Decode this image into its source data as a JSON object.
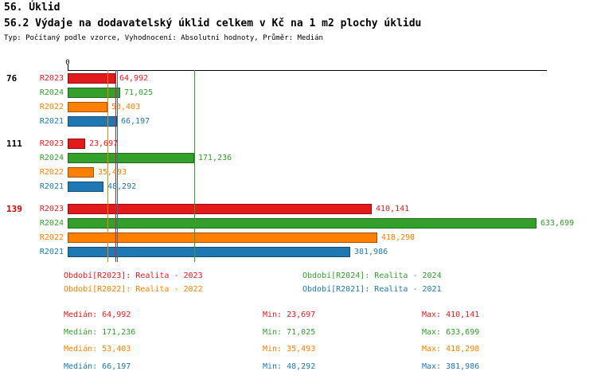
{
  "header": {
    "title": "56. Úklid",
    "subtitle": "56.2 Výdaje na dodavatelský úklid celkem v Kč na 1 m2 plochy úklidu",
    "meta": "Typ: Počítaný podle vzorce, Vyhodnocení: Absolutní hodnoty, Průměr: Medián"
  },
  "chart_data": {
    "type": "bar",
    "orientation": "horizontal",
    "title": "56. Úklid",
    "subtitle": "56.2 Výdaje na dodavatelský úklid celkem v Kč na 1 m2 plochy úklidu",
    "origin_label": "0",
    "xlim": [
      0,
      645000
    ],
    "axis_max": 645000,
    "grid": false,
    "groups": [
      {
        "label": "76",
        "color": "#000000"
      },
      {
        "label": "111",
        "color": "#000000"
      },
      {
        "label": "139",
        "color": "#cc0000"
      }
    ],
    "series": [
      {
        "name": "R2023",
        "color": "#e31a1c",
        "values": [
          64992,
          23697,
          410141
        ],
        "median": 64992
      },
      {
        "name": "R2024",
        "color": "#33a02c",
        "values": [
          71025,
          171236,
          633699
        ],
        "median": 171236
      },
      {
        "name": "R2022",
        "color": "#ff7f00",
        "values": [
          53403,
          35493,
          418298
        ],
        "median": 53403
      },
      {
        "name": "R2021",
        "color": "#1f78b4",
        "values": [
          66197,
          48292,
          381986
        ],
        "median": 66197
      }
    ]
  },
  "legend": {
    "items": [
      {
        "label": "Období[R2023]: Realita - 2023",
        "color": "#e31a1c"
      },
      {
        "label": "Období[R2024]: Realita - 2024",
        "color": "#33a02c"
      },
      {
        "label": "Období[R2022]: Realita - 2022",
        "color": "#ff7f00"
      },
      {
        "label": "Období[R2021]: Realita - 2021",
        "color": "#1f78b4"
      }
    ]
  },
  "stats": {
    "rows": [
      {
        "color": "#e31a1c",
        "median_text": "Medián: 64,992",
        "min_text": "Min: 23,697",
        "max_text": "Max: 410,141"
      },
      {
        "color": "#33a02c",
        "median_text": "Medián: 171,236",
        "min_text": "Min: 71,025",
        "max_text": "Max: 633,699"
      },
      {
        "color": "#ff7f00",
        "median_text": "Medián: 53,403",
        "min_text": "Min: 35,493",
        "max_text": "Max: 418,298"
      },
      {
        "color": "#1f78b4",
        "median_text": "Medián: 66,197",
        "min_text": "Min: 48,292",
        "max_text": "Max: 381,986"
      }
    ]
  }
}
